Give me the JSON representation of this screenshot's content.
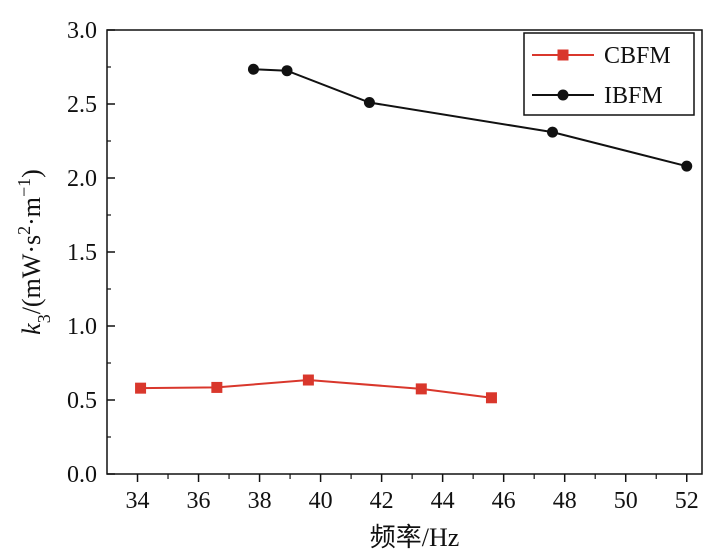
{
  "chart_data": {
    "type": "line",
    "xlabel": "频率/Hz",
    "ylabel": {
      "var": "k",
      "sub": "3",
      "unit_open": "/(mW·s",
      "sup1": "2",
      "unit_mid": "·m",
      "sup2": "−1",
      "unit_close": ")"
    },
    "xlim": [
      33,
      52.5
    ],
    "ylim": [
      0,
      3.0
    ],
    "x_ticks": [
      34,
      36,
      38,
      40,
      42,
      44,
      46,
      48,
      50,
      52
    ],
    "x_tick_labels": [
      "34",
      "36",
      "38",
      "40",
      "42",
      "44",
      "46",
      "48",
      "50",
      "52"
    ],
    "y_ticks": [
      0,
      0.5,
      1.0,
      1.5,
      2.0,
      2.5,
      3.0
    ],
    "y_tick_labels": [
      "0.0",
      "0.5",
      "1.0",
      "1.5",
      "2.0",
      "2.5",
      "3.0"
    ],
    "grid": false,
    "legend_position": "top-right",
    "series": [
      {
        "name": "CBFM",
        "color": "#d9372c",
        "marker": "square",
        "x": [
          34.1,
          36.6,
          39.6,
          43.3,
          45.6
        ],
        "y": [
          0.58,
          0.585,
          0.635,
          0.575,
          0.515
        ]
      },
      {
        "name": "IBFM",
        "color": "#111111",
        "marker": "circle",
        "x": [
          37.8,
          38.9,
          41.6,
          47.6,
          52.0
        ],
        "y": [
          2.735,
          2.725,
          2.51,
          2.31,
          2.08
        ]
      }
    ]
  }
}
